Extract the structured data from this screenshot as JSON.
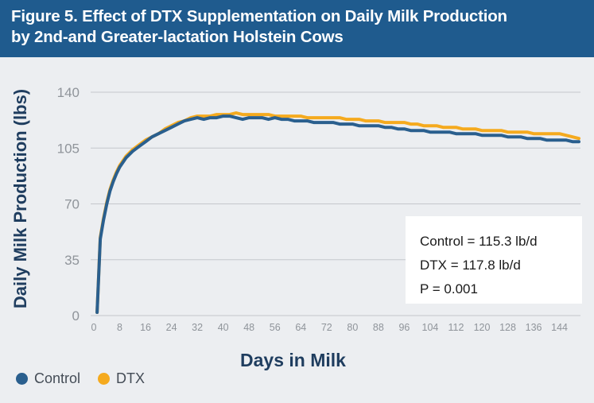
{
  "header": {
    "title_line1": "Figure 5. Effect of DTX Supplementation on Daily Milk Production",
    "title_line2": "by 2nd-and Greater-lactation Holstein Cows"
  },
  "colors": {
    "header_bg": "#1f5b8e",
    "control": "#2a5f8e",
    "dtx": "#f5aa1e",
    "grid": "#c4c7cc",
    "tick_text": "#8f949a",
    "axis_title": "#1f3d5f"
  },
  "chart_data": {
    "type": "line",
    "title": "Figure 5. Effect of DTX Supplementation on Daily Milk Production by 2nd-and Greater-lactation Holstein Cows",
    "xlabel": "Days in Milk",
    "ylabel": "Daily Milk Production (lbs)",
    "xlim": [
      0,
      150
    ],
    "ylim": [
      0,
      140
    ],
    "yticks": [
      "0",
      "35",
      "70",
      "105",
      "140"
    ],
    "xticks": [
      "0",
      "8",
      "16",
      "24",
      "32",
      "40",
      "48",
      "56",
      "64",
      "72",
      "80",
      "88",
      "96",
      "104",
      "112",
      "120",
      "128",
      "136",
      "144"
    ],
    "legend_position": "bottom-left",
    "grid": true,
    "series": [
      {
        "name": "Control",
        "color": "#2a5f8e",
        "x": [
          1,
          2,
          3,
          4,
          5,
          6,
          7,
          8,
          10,
          12,
          14,
          16,
          18,
          20,
          22,
          24,
          26,
          28,
          30,
          32,
          34,
          36,
          38,
          40,
          42,
          44,
          46,
          48,
          50,
          52,
          54,
          56,
          58,
          60,
          62,
          64,
          66,
          68,
          70,
          72,
          74,
          76,
          78,
          80,
          82,
          84,
          86,
          88,
          90,
          92,
          94,
          96,
          98,
          100,
          102,
          104,
          106,
          108,
          110,
          112,
          114,
          116,
          118,
          120,
          122,
          124,
          126,
          128,
          130,
          132,
          134,
          136,
          138,
          140,
          142,
          144,
          146,
          148,
          150
        ],
        "values": [
          2,
          48,
          60,
          70,
          78,
          84,
          89,
          93,
          99,
          103,
          106,
          109,
          112,
          114,
          116,
          118,
          120,
          122,
          123,
          124,
          123,
          124,
          124,
          125,
          125,
          124,
          123,
          124,
          124,
          124,
          123,
          124,
          123,
          123,
          122,
          122,
          122,
          121,
          121,
          121,
          121,
          120,
          120,
          120,
          119,
          119,
          119,
          119,
          118,
          118,
          117,
          117,
          116,
          116,
          116,
          115,
          115,
          115,
          115,
          114,
          114,
          114,
          114,
          113,
          113,
          113,
          113,
          112,
          112,
          112,
          111,
          111,
          111,
          110,
          110,
          110,
          110,
          109,
          109
        ]
      },
      {
        "name": "DTX",
        "color": "#f5aa1e",
        "x": [
          1,
          2,
          3,
          4,
          5,
          6,
          7,
          8,
          10,
          12,
          14,
          16,
          18,
          20,
          22,
          24,
          26,
          28,
          30,
          32,
          34,
          36,
          38,
          40,
          42,
          44,
          46,
          48,
          50,
          52,
          54,
          56,
          58,
          60,
          62,
          64,
          66,
          68,
          70,
          72,
          74,
          76,
          78,
          80,
          82,
          84,
          86,
          88,
          90,
          92,
          94,
          96,
          98,
          100,
          102,
          104,
          106,
          108,
          110,
          112,
          114,
          116,
          118,
          120,
          122,
          124,
          126,
          128,
          130,
          132,
          134,
          136,
          138,
          140,
          142,
          144,
          146,
          148,
          150
        ],
        "values": [
          2,
          49,
          61,
          71,
          79,
          85,
          90,
          94,
          100,
          104,
          107,
          110,
          112,
          114,
          117,
          119,
          121,
          122,
          124,
          125,
          125,
          125,
          126,
          126,
          126,
          127,
          126,
          126,
          126,
          126,
          126,
          125,
          125,
          125,
          125,
          125,
          124,
          124,
          124,
          124,
          124,
          124,
          123,
          123,
          123,
          122,
          122,
          122,
          121,
          121,
          121,
          121,
          120,
          120,
          119,
          119,
          119,
          118,
          118,
          118,
          117,
          117,
          117,
          116,
          116,
          116,
          116,
          115,
          115,
          115,
          115,
          114,
          114,
          114,
          114,
          114,
          113,
          112,
          111
        ]
      }
    ],
    "annotations": {
      "control_mean": "Control = 115.3 lb/d",
      "dtx_mean": "DTX = 117.8 lb/d",
      "p_value": "P = 0.001"
    }
  }
}
